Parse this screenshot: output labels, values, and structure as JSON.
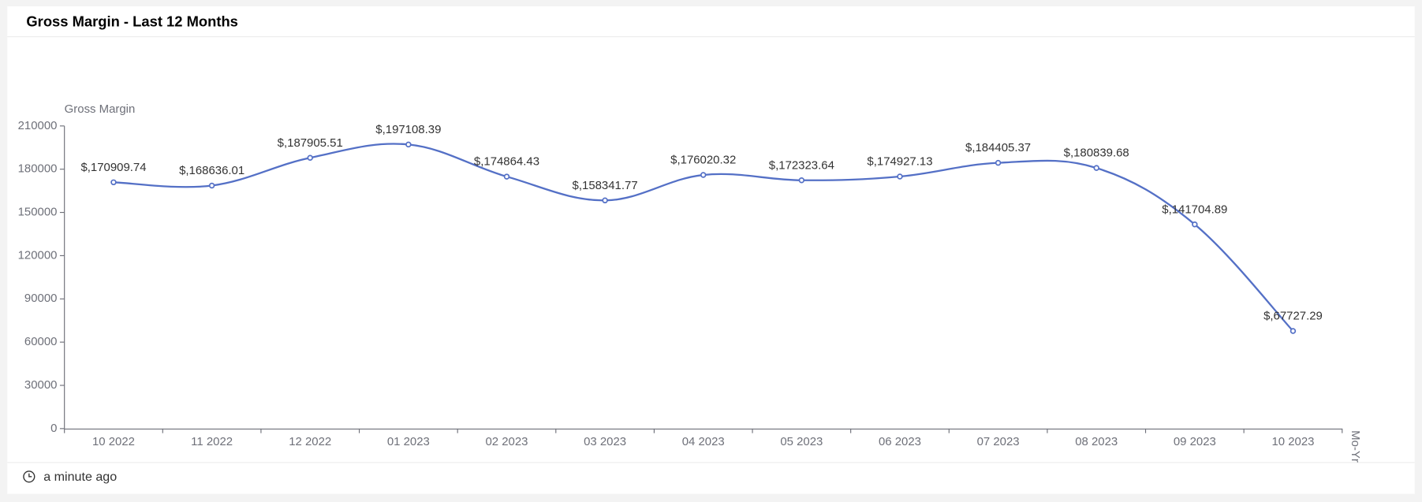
{
  "chart_data": {
    "type": "line",
    "title": "Gross Margin - Last 12 Months",
    "y_label": "Gross Margin",
    "x_label": "Mo-Yr",
    "categories": [
      "10 2022",
      "11 2022",
      "12 2022",
      "01 2023",
      "02 2023",
      "03 2023",
      "04 2023",
      "05 2023",
      "06 2023",
      "07 2023",
      "08 2023",
      "09 2023",
      "10 2023"
    ],
    "series": [
      {
        "name": "Gross Margin",
        "color": "#5470c6",
        "values": [
          170909.74,
          168636.01,
          187905.51,
          197108.39,
          174864.43,
          158341.77,
          176020.32,
          172323.64,
          174927.13,
          184405.37,
          180839.68,
          141704.89,
          67727.29
        ],
        "value_labels": [
          "$,170909.74",
          "$,168636.01",
          "$,187905.51",
          "$,197108.39",
          "$,174864.43",
          "$,158341.77",
          "$,176020.32",
          "$,172323.64",
          "$,174927.13",
          "$,184405.37",
          "$,180839.68",
          "$,141704.89",
          "$,67727.29"
        ]
      }
    ],
    "ylim": [
      0,
      210000
    ],
    "yticks": [
      0,
      30000,
      60000,
      90000,
      120000,
      150000,
      180000,
      210000
    ],
    "grid": false
  },
  "footer": "a minute ago"
}
